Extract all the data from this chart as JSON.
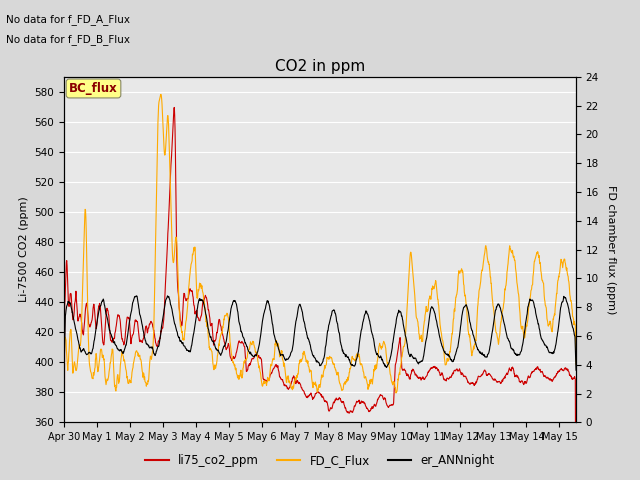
{
  "title": "CO2 in ppm",
  "ylabel_left": "Li-7500 CO2 (ppm)",
  "ylabel_right": "FD chamber flux (ppm)",
  "ylim_left": [
    360,
    590
  ],
  "ylim_right": [
    0,
    24
  ],
  "yticks_left": [
    360,
    380,
    400,
    420,
    440,
    460,
    480,
    500,
    520,
    540,
    560,
    580
  ],
  "yticks_right": [
    0,
    2,
    4,
    6,
    8,
    10,
    12,
    14,
    16,
    18,
    20,
    22,
    24
  ],
  "bg_color": "#d8d8d8",
  "plot_bg_color": "#e8e8e8",
  "line_colors": {
    "li75": "#cc0000",
    "fd_c": "#ffaa00",
    "er_ann": "#000000"
  },
  "legend_labels": [
    "li75_co2_ppm",
    "FD_C_Flux",
    "er_ANNnight"
  ],
  "annotation_texts": [
    "No data for f_FD_A_Flux",
    "No data for f_FD_B_Flux"
  ],
  "bc_flux_label": "BC_flux",
  "bc_flux_color": "#ffff88",
  "bc_flux_border": "#888866",
  "n_days": 15.5,
  "n_points": 1500
}
